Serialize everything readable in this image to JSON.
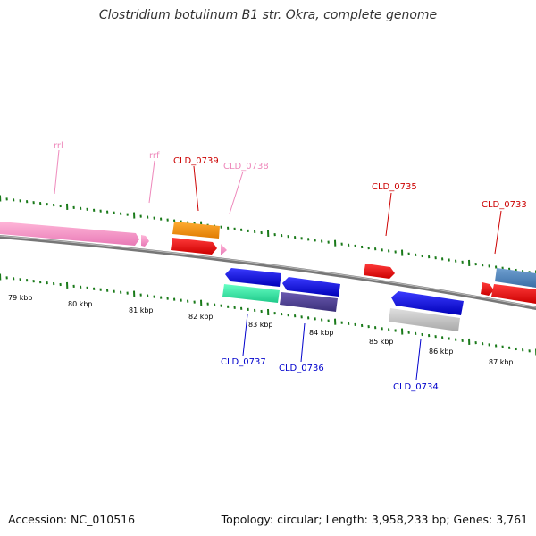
{
  "title": "Clostridium botulinum B1 str. Okra, complete genome",
  "accession_label": "Accession: NC_010516",
  "summary_label": "Topology: circular; Length: 3,958,233 bp; Genes: 3,761",
  "colors": {
    "backbone": "#808080",
    "ticks": "#1a7a1a",
    "forward_label": "#cc0000",
    "reverse_label": "#0000cc",
    "rna_label": "#ee88bb"
  },
  "scale_labels": [
    "79 kbp",
    "80 kbp",
    "81 kbp",
    "82 kbp",
    "83 kbp",
    "84 kbp",
    "85 kbp",
    "86 kbp",
    "87 kbp"
  ],
  "genes": [
    {
      "label": "rrl",
      "strand": "rna"
    },
    {
      "label": "rrf",
      "strand": "rna"
    },
    {
      "label": "CLD_0739",
      "strand": "forward"
    },
    {
      "label": "CLD_0738",
      "strand": "rna"
    },
    {
      "label": "CLD_0735",
      "strand": "forward"
    },
    {
      "label": "CLD_0733",
      "strand": "forward"
    },
    {
      "label": "CLD_0737",
      "strand": "reverse"
    },
    {
      "label": "CLD_0736",
      "strand": "reverse"
    },
    {
      "label": "CLD_0734",
      "strand": "reverse"
    }
  ]
}
